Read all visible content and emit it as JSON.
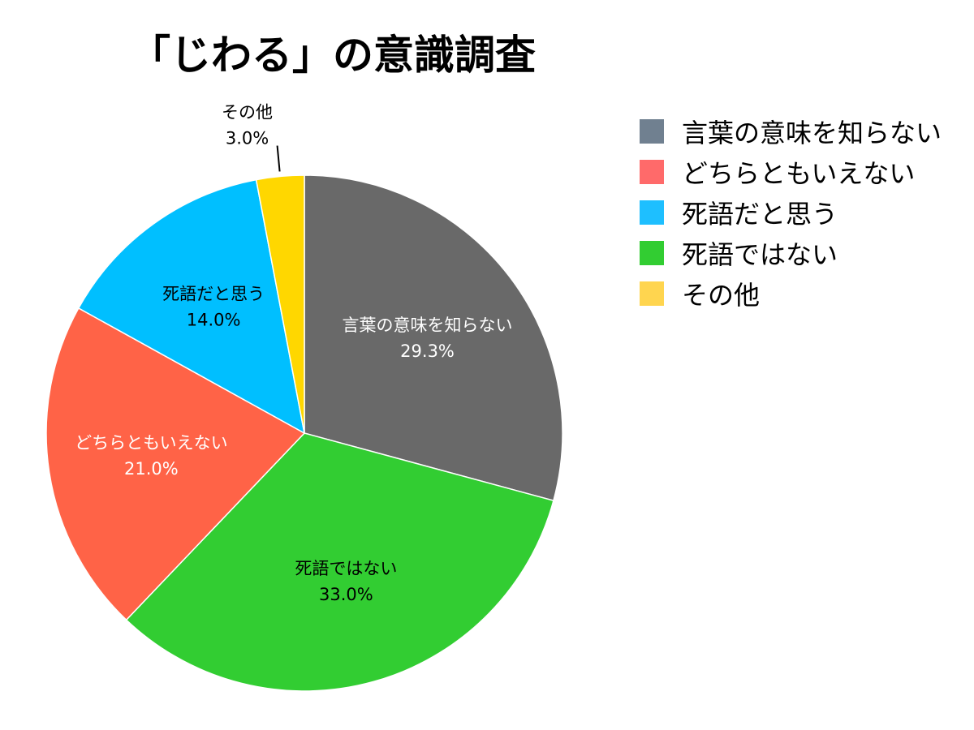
{
  "chart_data": {
    "type": "pie",
    "title": "「じわる」の意識調査",
    "start_angle_deg": 0,
    "direction": "clockwise",
    "legend_position": "right",
    "slices": [
      {
        "label": "言葉の意味を知らない",
        "value": 29.3,
        "value_label": "29.3%",
        "color": "#696969",
        "legend_color": "#708090",
        "label_color": "#ffffff"
      },
      {
        "label": "死語ではない",
        "value": 33.0,
        "value_label": "33.0%",
        "color": "#32CD32",
        "legend_color": "#32CD32",
        "label_color": "#000000"
      },
      {
        "label": "どちらともいえない",
        "value": 21.0,
        "value_label": "21.0%",
        "color": "#FF6347",
        "legend_color": "#FF6A6A",
        "label_color": "#ffffff"
      },
      {
        "label": "死語だと思う",
        "value": 14.0,
        "value_label": "14.0%",
        "color": "#00BFFF",
        "legend_color": "#1EBFFF",
        "label_color": "#000000"
      },
      {
        "label": "その他",
        "value": 3.0,
        "value_label": "3.0%",
        "color": "#FFD700",
        "legend_color": "#FFD54F",
        "label_color": "#000000"
      }
    ],
    "legend_order": [
      "言葉の意味を知らない",
      "どちらともいえない",
      "死語だと思う",
      "死語ではない",
      "その他"
    ]
  }
}
